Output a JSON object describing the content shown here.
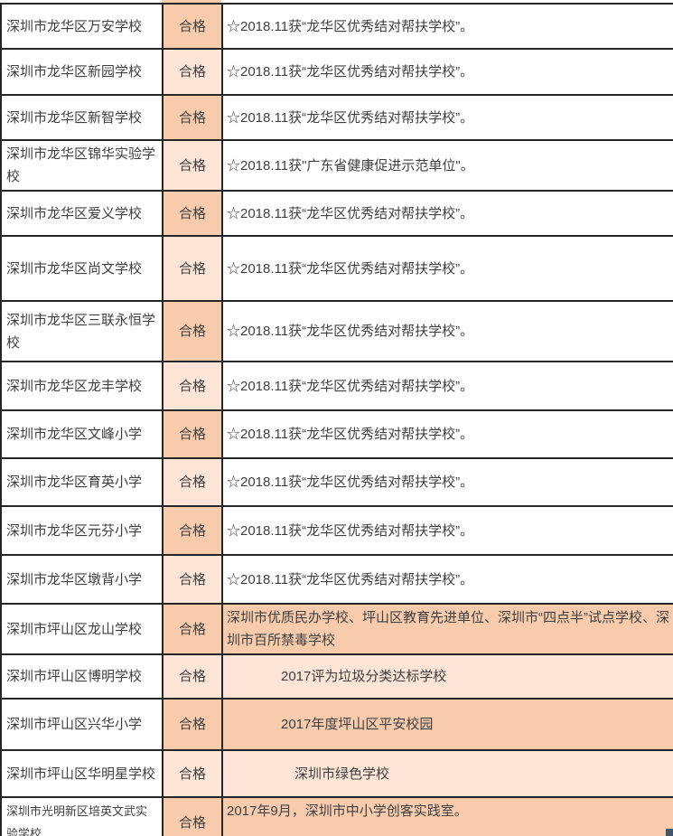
{
  "colors": {
    "fill_dark": "#F8CBAD",
    "fill_light": "#FCE4D6",
    "border": "#262626",
    "text": "#3F3F3F",
    "selection_handle": "#44546A",
    "background": "#FFFFFF"
  },
  "table": {
    "rows": [
      {
        "school": "深圳市龙华区万安学校",
        "status": "合格",
        "remark": "☆2018.11获“龙华区优秀结对帮扶学校”。"
      },
      {
        "school": "深圳市龙华区新园学校",
        "status": "合格",
        "remark": "☆2018.11获“龙华区优秀结对帮扶学校”。"
      },
      {
        "school": "深圳市龙华区新智学校",
        "status": "合格",
        "remark": "☆2018.11获“龙华区优秀结对帮扶学校”。"
      },
      {
        "school": "深圳市龙华区锦华实验学校",
        "status": "合格",
        "remark": "☆2018.11获\"广东省健康促进示范单位\"。"
      },
      {
        "school": "深圳市龙华区爱义学校",
        "status": "合格",
        "remark": "☆2018.11获“龙华区优秀结对帮扶学校”。"
      },
      {
        "school": "深圳市龙华区尚文学校",
        "status": "合格",
        "remark": "☆2018.11获“龙华区优秀结对帮扶学校”。"
      },
      {
        "school": "深圳市龙华区三联永恒学校",
        "status": "合格",
        "remark": "☆2018.11获“龙华区优秀结对帮扶学校”。"
      },
      {
        "school": "深圳市龙华区龙丰学校",
        "status": "合格",
        "remark": "☆2018.11获“龙华区优秀结对帮扶学校”。"
      },
      {
        "school": "深圳市龙华区文峰小学",
        "status": "合格",
        "remark": "☆2018.11获“龙华区优秀结对帮扶学校”。"
      },
      {
        "school": "深圳市龙华区育英小学",
        "status": "合格",
        "remark": "☆2018.11获“龙华区优秀结对帮扶学校”。"
      },
      {
        "school": "深圳市龙华区元芬小学",
        "status": "合格",
        "remark": "☆2018.11获“龙华区优秀结对帮扶学校”。"
      },
      {
        "school": "深圳市龙华区墩背小学",
        "status": "合格",
        "remark": "☆2018.11获“龙华区优秀结对帮扶学校”。"
      },
      {
        "school": "深圳市坪山区龙山学校",
        "status": "合格",
        "remark": "深圳市优质民办学校、坪山区教育先进单位、深圳市“四点半”试点学校、深圳市百所禁毒学校"
      },
      {
        "school": "深圳市坪山区博明学校",
        "status": "合格",
        "remark": "　　　　2017评为垃圾分类达标学校"
      },
      {
        "school": "深圳市坪山区兴华小学",
        "status": "合格",
        "remark": "　　　　2017年度坪山区平安校园"
      },
      {
        "school": "深圳市坪山区华明星学校",
        "status": "合格",
        "remark": "　　　　　深圳市绿色学校"
      },
      {
        "school": "深圳市光明新区培英文武实验学校",
        "status": "合格",
        "remark": "2017年9月，深圳市中小学创客实践室。"
      }
    ]
  }
}
